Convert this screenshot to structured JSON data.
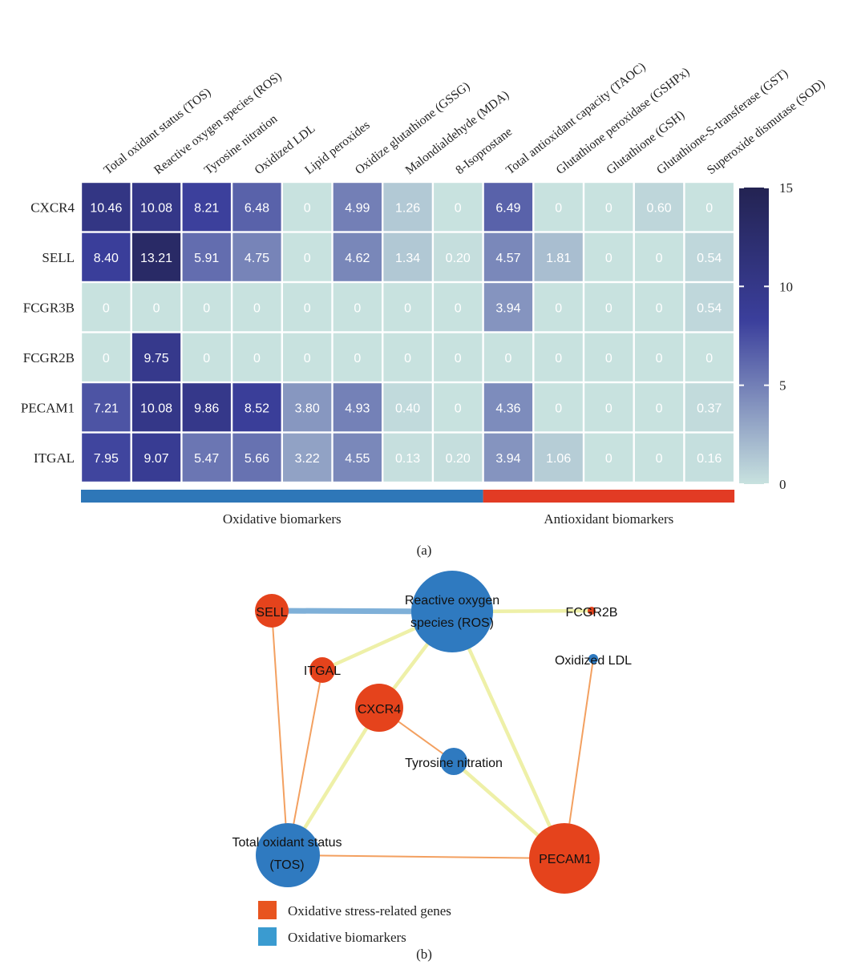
{
  "panel_a_label": "(a)",
  "panel_b_label": "(b)",
  "chart_data": [
    {
      "type": "heatmap",
      "columns": [
        "Total oxidant status (TOS)",
        "Reactive oxygen species (ROS)",
        "Tyrosine nitration",
        "Oxidized LDL",
        "Lipid peroxides",
        "Oxidize glutathione (GSSG)",
        "Malondialdehyde (MDA)",
        "8-Isoprostane",
        "Total antioxidant capacity (TAOC)",
        "Glutathione peroxidase (GSHPx)",
        "Glutathione (GSH)",
        "Glutathione-S-transferase (GST)",
        "Superoxide dismutase (SOD)"
      ],
      "rows": [
        "CXCR4",
        "SELL",
        "FCGR3B",
        "FCGR2B",
        "PECAM1",
        "ITGAL"
      ],
      "values": [
        [
          10.46,
          10.08,
          8.21,
          6.48,
          0,
          4.99,
          1.26,
          0,
          6.49,
          0,
          0,
          0.6,
          0
        ],
        [
          8.4,
          13.21,
          5.91,
          4.75,
          0,
          4.62,
          1.34,
          0.2,
          4.57,
          1.81,
          0,
          0,
          0.54
        ],
        [
          0,
          0,
          0,
          0,
          0,
          0,
          0,
          0,
          3.94,
          0,
          0,
          0,
          0.54
        ],
        [
          0,
          9.75,
          0,
          0,
          0,
          0,
          0,
          0,
          0,
          0,
          0,
          0,
          0
        ],
        [
          7.21,
          10.08,
          9.86,
          8.52,
          3.8,
          4.93,
          0.4,
          0,
          4.36,
          0,
          0,
          0,
          0.37
        ],
        [
          7.95,
          9.07,
          5.47,
          5.66,
          3.22,
          4.55,
          0.13,
          0.2,
          3.94,
          1.06,
          0,
          0,
          0.16
        ]
      ],
      "value_labels": [
        [
          "10.46",
          "10.08",
          "8.21",
          "6.48",
          "0",
          "4.99",
          "1.26",
          "0",
          "6.49",
          "0",
          "0",
          "0.60",
          "0"
        ],
        [
          "8.40",
          "13.21",
          "5.91",
          "4.75",
          "0",
          "4.62",
          "1.34",
          "0.20",
          "4.57",
          "1.81",
          "0",
          "0",
          "0.54"
        ],
        [
          "0",
          "0",
          "0",
          "0",
          "0",
          "0",
          "0",
          "0",
          "3.94",
          "0",
          "0",
          "0",
          "0.54"
        ],
        [
          "0",
          "9.75",
          "0",
          "0",
          "0",
          "0",
          "0",
          "0",
          "0",
          "0",
          "0",
          "0",
          "0"
        ],
        [
          "7.21",
          "10.08",
          "9.86",
          "8.52",
          "3.80",
          "4.93",
          "0.40",
          "0",
          "4.36",
          "0",
          "0",
          "0",
          "0.37"
        ],
        [
          "7.95",
          "9.07",
          "5.47",
          "5.66",
          "3.22",
          "4.55",
          "0.13",
          "0.20",
          "3.94",
          "1.06",
          "0",
          "0",
          "0.16"
        ]
      ],
      "colorbar": {
        "min": 0,
        "max": 15,
        "ticks": [
          0,
          5,
          10,
          15
        ],
        "low_color": "#c8e2df",
        "mid_color": "#3b3f9c",
        "high_color": "#232352"
      },
      "groups": [
        {
          "label": "Oxidative biomarkers",
          "from_column": 0,
          "to_column": 7,
          "color": "#2e77b8"
        },
        {
          "label": "Antioxidant biomarkers",
          "from_column": 8,
          "to_column": 12,
          "color": "#e23b24"
        }
      ]
    },
    {
      "type": "network",
      "nodes": [
        {
          "id": "SELL",
          "label": "SELL",
          "group": "Oxidative stress-related genes",
          "size": "small"
        },
        {
          "id": "ROS",
          "label": "Reactive oxygen species (ROS)",
          "group": "Oxidative biomarkers",
          "size": "largest"
        },
        {
          "id": "FCGR2B",
          "label": "FCGR2B",
          "group": "Oxidative stress-related genes",
          "size": "tiny"
        },
        {
          "id": "ITGAL",
          "label": "ITGAL",
          "group": "Oxidative stress-related genes",
          "size": "small"
        },
        {
          "id": "OxLDL",
          "label": "Oxidized LDL",
          "group": "Oxidative biomarkers",
          "size": "tiny"
        },
        {
          "id": "CXCR4",
          "label": "CXCR4",
          "group": "Oxidative stress-related genes",
          "size": "medium"
        },
        {
          "id": "TyrNit",
          "label": "Tyrosine nitration",
          "group": "Oxidative biomarkers",
          "size": "small"
        },
        {
          "id": "TOS",
          "label": "Total oxidant status (TOS)",
          "group": "Oxidative biomarkers",
          "size": "large"
        },
        {
          "id": "PECAM1",
          "label": "PECAM1",
          "group": "Oxidative stress-related genes",
          "size": "large"
        }
      ],
      "edges": [
        {
          "source": "SELL",
          "target": "ROS",
          "color": "#7fb0d8"
        },
        {
          "source": "ROS",
          "target": "FCGR2B",
          "color": "#eef0a8"
        },
        {
          "source": "ROS",
          "target": "ITGAL",
          "color": "#eef0a8"
        },
        {
          "source": "ROS",
          "target": "CXCR4",
          "color": "#eef0a8"
        },
        {
          "source": "ROS",
          "target": "PECAM1",
          "color": "#eef0a8"
        },
        {
          "source": "CXCR4",
          "target": "TOS",
          "color": "#eef0a8"
        },
        {
          "source": "TyrNit",
          "target": "PECAM1",
          "color": "#eef0a8"
        },
        {
          "source": "SELL",
          "target": "TOS",
          "color": "#f3a060"
        },
        {
          "source": "ITGAL",
          "target": "TOS",
          "color": "#f3a060"
        },
        {
          "source": "CXCR4",
          "target": "TyrNit",
          "color": "#f3a060"
        },
        {
          "source": "OxLDL",
          "target": "PECAM1",
          "color": "#f3a060"
        },
        {
          "source": "TOS",
          "target": "PECAM1",
          "color": "#f3a060"
        }
      ],
      "legend": [
        {
          "label": "Oxidative stress-related genes",
          "color": "#e8541f"
        },
        {
          "label": "Oxidative biomarkers",
          "color": "#3a9bd0"
        }
      ],
      "gene_color": "#e5431c",
      "biomarker_color": "#2f7ac0"
    }
  ]
}
